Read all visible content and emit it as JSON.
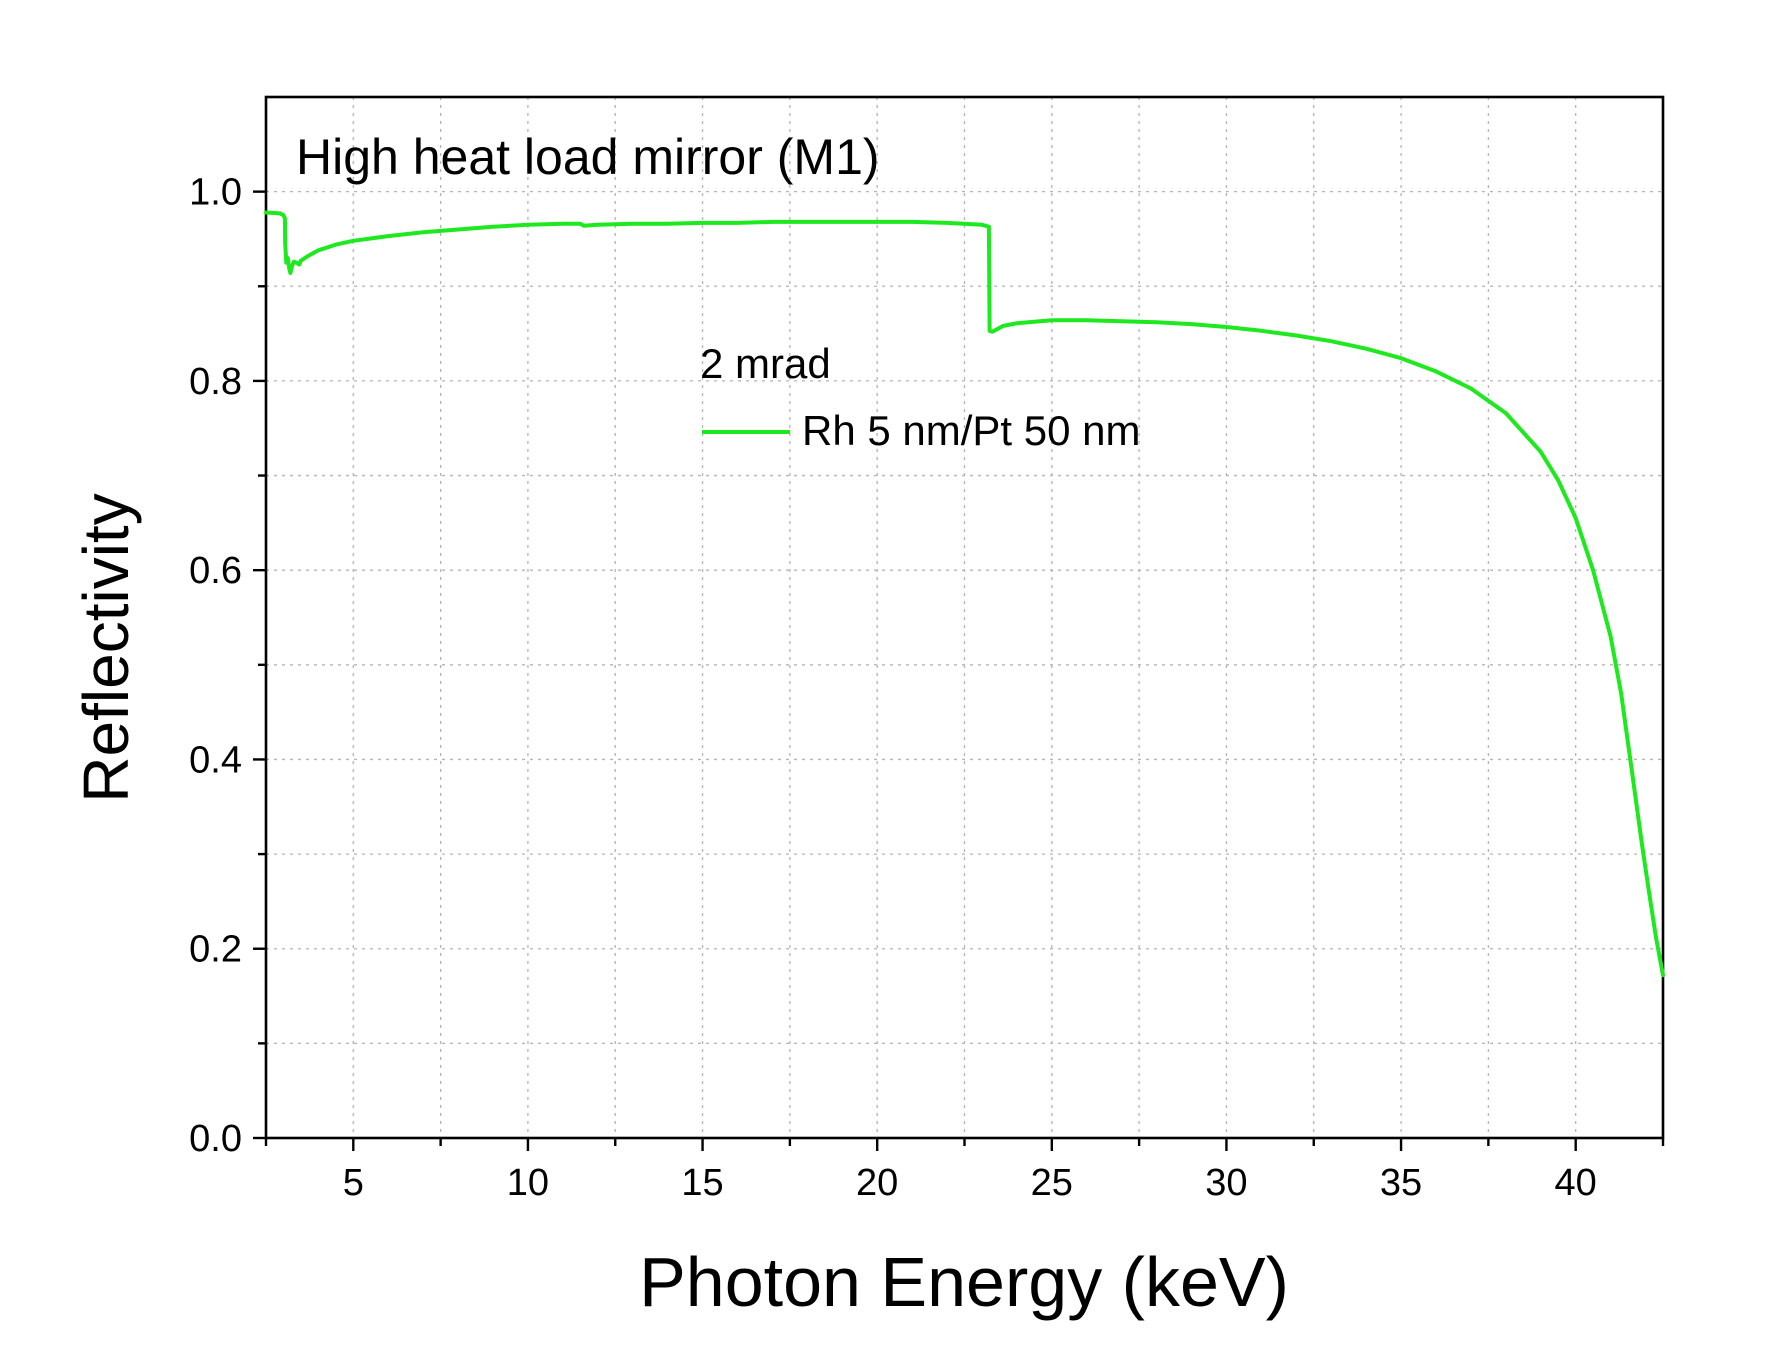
{
  "chart_data": {
    "type": "line",
    "annotation": "High heat load mirror (M1)",
    "xlabel": "Photon Energy (keV)",
    "ylabel": "Reflectivity",
    "xlim": [
      2.5,
      42.5
    ],
    "ylim": [
      0.0,
      1.1
    ],
    "x_major_ticks": [
      5,
      10,
      15,
      20,
      25,
      30,
      35,
      40
    ],
    "x_minor_ticks": [
      2.5,
      7.5,
      12.5,
      17.5,
      22.5,
      27.5,
      32.5,
      37.5,
      42.5
    ],
    "y_major_ticks": [
      0.0,
      0.2,
      0.4,
      0.6,
      0.8,
      1.0
    ],
    "y_minor_ticks": [
      0.1,
      0.3,
      0.5,
      0.7,
      0.9
    ],
    "x_tick_labels": [
      "5",
      "10",
      "15",
      "20",
      "25",
      "30",
      "35",
      "40"
    ],
    "y_tick_labels": [
      "0.0",
      "0.2",
      "0.4",
      "0.6",
      "0.8",
      "1.0"
    ],
    "grid": true,
    "legend": {
      "placement": "center",
      "title": "2 mrad"
    },
    "series": [
      {
        "name": "Rh 5 nm/Pt 50 nm",
        "color": "#1ee81e",
        "points": [
          [
            2.5,
            0.978
          ],
          [
            2.9,
            0.977
          ],
          [
            3.0,
            0.975
          ],
          [
            3.04,
            0.972
          ],
          [
            3.05,
            0.945
          ],
          [
            3.08,
            0.925
          ],
          [
            3.12,
            0.93
          ],
          [
            3.17,
            0.918
          ],
          [
            3.2,
            0.914
          ],
          [
            3.25,
            0.922
          ],
          [
            3.3,
            0.926
          ],
          [
            3.37,
            0.925
          ],
          [
            3.45,
            0.923
          ],
          [
            3.5,
            0.927
          ],
          [
            3.7,
            0.932
          ],
          [
            4.0,
            0.938
          ],
          [
            4.5,
            0.944
          ],
          [
            5.0,
            0.948
          ],
          [
            6.0,
            0.953
          ],
          [
            7.0,
            0.957
          ],
          [
            8.0,
            0.96
          ],
          [
            9.0,
            0.963
          ],
          [
            10.0,
            0.965
          ],
          [
            11.0,
            0.966
          ],
          [
            11.5,
            0.966
          ],
          [
            11.6,
            0.964
          ],
          [
            12.0,
            0.965
          ],
          [
            13.0,
            0.966
          ],
          [
            14.0,
            0.966
          ],
          [
            15.0,
            0.967
          ],
          [
            16.0,
            0.967
          ],
          [
            17.0,
            0.968
          ],
          [
            18.0,
            0.968
          ],
          [
            19.0,
            0.968
          ],
          [
            20.0,
            0.968
          ],
          [
            21.0,
            0.968
          ],
          [
            22.0,
            0.967
          ],
          [
            23.0,
            0.965
          ],
          [
            23.2,
            0.963
          ],
          [
            23.22,
            0.853
          ],
          [
            23.3,
            0.852
          ],
          [
            23.6,
            0.858
          ],
          [
            24.0,
            0.861
          ],
          [
            25.0,
            0.864
          ],
          [
            26.0,
            0.864
          ],
          [
            27.0,
            0.863
          ],
          [
            28.0,
            0.862
          ],
          [
            29.0,
            0.86
          ],
          [
            30.0,
            0.857
          ],
          [
            31.0,
            0.853
          ],
          [
            32.0,
            0.848
          ],
          [
            33.0,
            0.842
          ],
          [
            34.0,
            0.834
          ],
          [
            35.0,
            0.824
          ],
          [
            36.0,
            0.81
          ],
          [
            37.0,
            0.792
          ],
          [
            38.0,
            0.766
          ],
          [
            39.0,
            0.725
          ],
          [
            39.5,
            0.695
          ],
          [
            40.0,
            0.655
          ],
          [
            40.5,
            0.6
          ],
          [
            41.0,
            0.53
          ],
          [
            41.3,
            0.47
          ],
          [
            41.6,
            0.39
          ],
          [
            41.9,
            0.31
          ],
          [
            42.1,
            0.26
          ],
          [
            42.3,
            0.212
          ],
          [
            42.5,
            0.172
          ]
        ]
      }
    ]
  }
}
